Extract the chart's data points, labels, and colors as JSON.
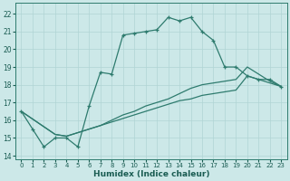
{
  "xlabel": "Humidex (Indice chaleur)",
  "bg_color": "#cce8e8",
  "grid_color": "#b0d4d4",
  "line_color": "#2e7b6e",
  "line1": {
    "x": [
      0,
      1,
      2,
      3,
      4,
      5,
      6,
      7,
      8,
      9,
      10,
      11,
      12,
      13,
      14,
      15,
      16,
      17,
      18,
      19,
      20,
      21,
      22,
      23
    ],
    "y": [
      16.5,
      15.5,
      14.5,
      15.0,
      15.0,
      14.5,
      16.8,
      18.7,
      18.6,
      20.8,
      20.9,
      21.0,
      21.1,
      21.8,
      21.6,
      21.8,
      21.0,
      20.5,
      19.0,
      19.0,
      18.5,
      18.3,
      18.3,
      17.9
    ]
  },
  "line2": {
    "x": [
      0,
      3,
      4,
      5,
      6,
      7,
      8,
      9,
      10,
      11,
      12,
      13,
      14,
      15,
      16,
      17,
      18,
      19,
      20,
      21,
      22,
      23
    ],
    "y": [
      16.5,
      15.2,
      15.1,
      15.3,
      15.5,
      15.7,
      15.9,
      16.1,
      16.3,
      16.5,
      16.7,
      16.9,
      17.1,
      17.2,
      17.4,
      17.5,
      17.6,
      17.7,
      18.5,
      18.3,
      18.1,
      17.9
    ]
  },
  "line3": {
    "x": [
      0,
      3,
      4,
      5,
      6,
      7,
      8,
      9,
      10,
      11,
      12,
      13,
      14,
      15,
      16,
      17,
      18,
      19,
      20,
      21,
      22,
      23
    ],
    "y": [
      16.5,
      15.2,
      15.1,
      15.3,
      15.5,
      15.7,
      16.0,
      16.3,
      16.5,
      16.8,
      17.0,
      17.2,
      17.5,
      17.8,
      18.0,
      18.1,
      18.2,
      18.3,
      19.0,
      18.6,
      18.2,
      17.9
    ]
  },
  "xlim": [
    -0.5,
    23.5
  ],
  "ylim": [
    13.8,
    22.6
  ],
  "yticks": [
    14,
    15,
    16,
    17,
    18,
    19,
    20,
    21,
    22
  ],
  "xticks": [
    0,
    1,
    2,
    3,
    4,
    5,
    6,
    7,
    8,
    9,
    10,
    11,
    12,
    13,
    14,
    15,
    16,
    17,
    18,
    19,
    20,
    21,
    22,
    23
  ],
  "xlabel_fontsize": 6.5,
  "tick_fontsize": 5.5,
  "xlabel_color": "#1a5c52",
  "tick_color": "#1a5c52",
  "spine_color": "#2e7b6e",
  "lw": 0.9,
  "marker": "+",
  "markersize": 3.5,
  "markeredgewidth": 0.9
}
